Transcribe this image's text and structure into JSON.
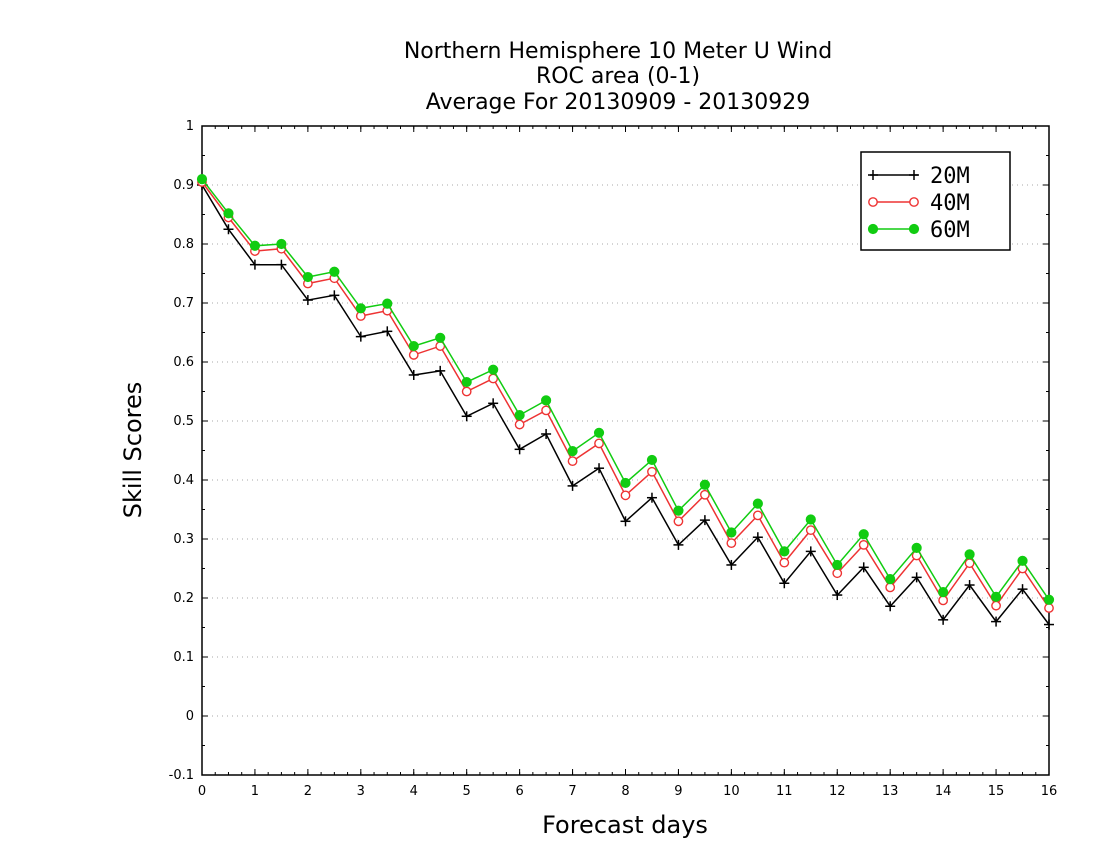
{
  "chart_data": {
    "type": "line",
    "title": [
      "Northern Hemisphere 10 Meter U Wind",
      "ROC area (0-1)",
      "Average For 20130909 - 20130929"
    ],
    "xlabel": "Forecast days",
    "ylabel": "Skill Scores",
    "xlim": [
      0,
      16
    ],
    "ylim": [
      -0.1,
      1
    ],
    "xticks": [
      0,
      1,
      2,
      3,
      4,
      5,
      6,
      7,
      8,
      9,
      10,
      11,
      12,
      13,
      14,
      15,
      16
    ],
    "xtick_labels": [
      "0",
      "1",
      "2",
      "3",
      "4",
      "5",
      "6",
      "7",
      "8",
      "9",
      "10",
      "11",
      "12",
      "13",
      "14",
      "15",
      "16"
    ],
    "yticks": [
      -0.1,
      0,
      0.1,
      0.2,
      0.3,
      0.4,
      0.5,
      0.6,
      0.7,
      0.8,
      0.9,
      1
    ],
    "ytick_labels": [
      "-0.1",
      "0",
      "0.1",
      "0.2",
      "0.3",
      "0.4",
      "0.5",
      "0.6",
      "0.7",
      "0.8",
      "0.9",
      "1"
    ],
    "grid": "horizontal dotted",
    "legend_position": "top-right",
    "x": [
      0,
      0.5,
      1,
      1.5,
      2,
      2.5,
      3,
      3.5,
      4,
      4.5,
      5,
      5.5,
      6,
      6.5,
      7,
      7.5,
      8,
      8.5,
      9,
      9.5,
      10,
      10.5,
      11,
      11.5,
      12,
      12.5,
      13,
      13.5,
      14,
      14.5,
      15,
      15.5,
      16
    ],
    "series": [
      {
        "name": "20M",
        "color": "#000000",
        "marker": "plus",
        "values": [
          0.9,
          0.825,
          0.765,
          0.765,
          0.705,
          0.713,
          0.643,
          0.652,
          0.578,
          0.585,
          0.508,
          0.53,
          0.452,
          0.478,
          0.39,
          0.42,
          0.33,
          0.37,
          0.29,
          0.332,
          0.256,
          0.303,
          0.225,
          0.279,
          0.205,
          0.252,
          0.186,
          0.235,
          0.163,
          0.222,
          0.16,
          0.215,
          0.155
        ]
      },
      {
        "name": "40M",
        "color": "#ee3333",
        "marker": "open-circle",
        "values": [
          0.905,
          0.845,
          0.788,
          0.792,
          0.733,
          0.742,
          0.678,
          0.687,
          0.612,
          0.627,
          0.55,
          0.572,
          0.494,
          0.518,
          0.432,
          0.462,
          0.374,
          0.414,
          0.33,
          0.375,
          0.293,
          0.34,
          0.26,
          0.315,
          0.242,
          0.29,
          0.218,
          0.272,
          0.196,
          0.259,
          0.187,
          0.25,
          0.183
        ]
      },
      {
        "name": "60M",
        "color": "#11cc11",
        "marker": "filled-circle",
        "values": [
          0.91,
          0.852,
          0.797,
          0.8,
          0.744,
          0.753,
          0.691,
          0.699,
          0.627,
          0.641,
          0.566,
          0.587,
          0.51,
          0.535,
          0.449,
          0.48,
          0.395,
          0.434,
          0.348,
          0.392,
          0.311,
          0.36,
          0.279,
          0.333,
          0.256,
          0.308,
          0.232,
          0.285,
          0.21,
          0.274,
          0.202,
          0.263,
          0.197
        ]
      }
    ]
  }
}
